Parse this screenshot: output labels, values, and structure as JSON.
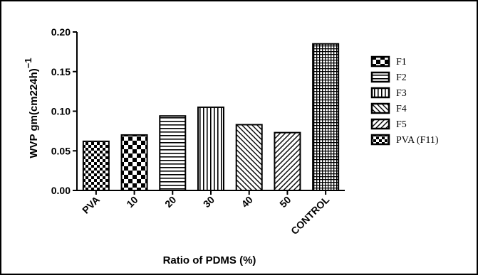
{
  "chart_data": {
    "type": "bar",
    "categories": [
      "PVA",
      "10",
      "20",
      "30",
      "40",
      "50",
      "CONTROL"
    ],
    "values": [
      0.062,
      0.07,
      0.094,
      0.105,
      0.083,
      0.073,
      0.185
    ],
    "xlabel": "Ratio of PDMS (%)",
    "ylabel": "WVP gm(cm224h)",
    "ylabel_sup": "−1",
    "ylim": [
      0,
      0.2
    ],
    "yticks": [
      "0.00",
      "0.05",
      "0.10",
      "0.15",
      "0.20"
    ],
    "grid": false,
    "legend_position": "right",
    "legend": [
      "F1",
      "F2",
      "F3",
      "F4",
      "F5",
      "PVA (F11)"
    ],
    "bar_patterns": [
      "checker-small",
      "checker-large",
      "horizontal-lines",
      "vertical-lines",
      "diagonal-right",
      "diagonal-left",
      "grid"
    ],
    "legend_patterns": [
      "checker-large",
      "horizontal-lines",
      "vertical-lines",
      "diagonal-right",
      "diagonal-left",
      "checker-small"
    ],
    "colors": {
      "stroke": "#000000",
      "fill": "#ffffff"
    }
  }
}
